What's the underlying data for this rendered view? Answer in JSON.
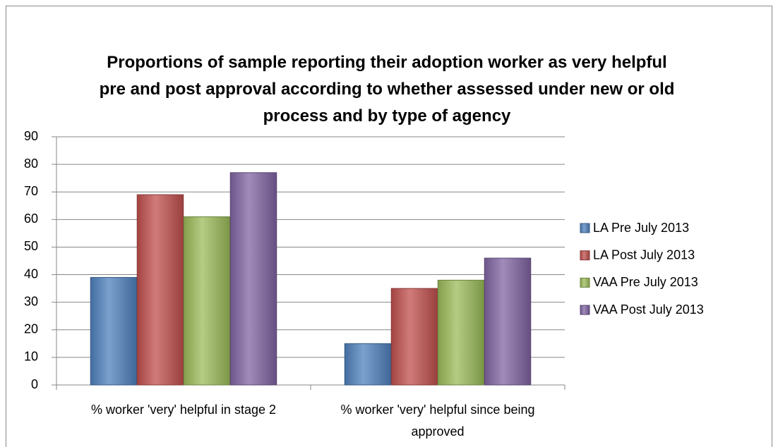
{
  "chart_data": {
    "type": "bar",
    "title": "Proportions of sample reporting their adoption worker as very helpful pre and post approval according to whether assessed under new or old process and by type of agency",
    "categories": [
      "% worker 'very' helpful in stage 2",
      "% worker 'very' helpful since being approved"
    ],
    "series": [
      {
        "name": "LA Pre July 2013",
        "color": "#4f81bd",
        "values": [
          39,
          15
        ]
      },
      {
        "name": "LA Post July 2013",
        "color": "#c0504d",
        "values": [
          69,
          35
        ]
      },
      {
        "name": "VAA Pre July 2013",
        "color": "#9bbb59",
        "values": [
          61,
          38
        ]
      },
      {
        "name": "VAA Post July 2013",
        "color": "#8064a2",
        "values": [
          77,
          46
        ]
      }
    ],
    "ylim": [
      0,
      90
    ],
    "yticks": [
      0,
      10,
      20,
      30,
      40,
      50,
      60,
      70,
      80,
      90
    ],
    "grid": true,
    "legend": "right"
  }
}
